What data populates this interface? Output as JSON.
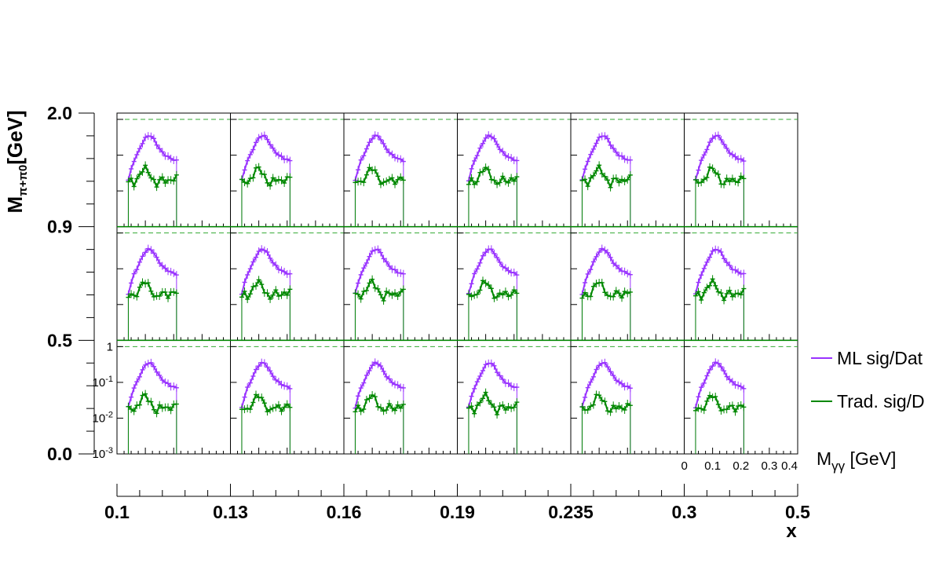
{
  "chart_data": {
    "type": "line",
    "layout": "3x6 grid of panels",
    "y_scale": "log",
    "y_range": [
      0.001,
      1.5
    ],
    "y_tick_labels": [
      "10^-3",
      "10^-2",
      "10^-1",
      "1"
    ],
    "x_range": [
      0,
      0.4
    ],
    "x_tick_labels": [
      "0",
      "0.1",
      "0.2",
      "0.3",
      "0.4"
    ],
    "xlabel": "M_γγ [GeV]",
    "reference_line": {
      "y": 1,
      "style": "dashed"
    },
    "outer_axes": {
      "x_title": "x",
      "x_bin_edges": [
        "0.1",
        "0.13",
        "0.16",
        "0.19",
        "0.235",
        "0.3",
        "0.5"
      ],
      "y_title": "M_π+π0 [GeV]",
      "y_bin_edges": [
        "0.0",
        "0.5",
        "0.9",
        "2.0"
      ]
    },
    "legend": {
      "position": "right",
      "entries": [
        "ML sig/Dat",
        "Trad. sig/D"
      ]
    },
    "series": [
      {
        "name": "ML sig/Dat",
        "color": "#9933ff",
        "x": [
          0.04,
          0.05,
          0.06,
          0.07,
          0.08,
          0.09,
          0.1,
          0.11,
          0.12,
          0.13,
          0.14,
          0.15,
          0.16,
          0.17,
          0.18,
          0.19,
          0.2,
          0.21
        ],
        "y": [
          0.02,
          0.04,
          0.07,
          0.1,
          0.15,
          0.22,
          0.3,
          0.35,
          0.34,
          0.28,
          0.2,
          0.15,
          0.12,
          0.1,
          0.09,
          0.08,
          0.075,
          0.07
        ]
      },
      {
        "name": "Trad. sig/D",
        "color": "#008800",
        "x": [
          0.04,
          0.05,
          0.06,
          0.07,
          0.08,
          0.09,
          0.1,
          0.11,
          0.12,
          0.13,
          0.14,
          0.15,
          0.16,
          0.17,
          0.18,
          0.19,
          0.2,
          0.21
        ],
        "y": [
          0.018,
          0.02,
          0.016,
          0.02,
          0.028,
          0.04,
          0.045,
          0.035,
          0.025,
          0.018,
          0.015,
          0.02,
          0.022,
          0.02,
          0.018,
          0.02,
          0.022,
          0.024
        ]
      }
    ]
  }
}
